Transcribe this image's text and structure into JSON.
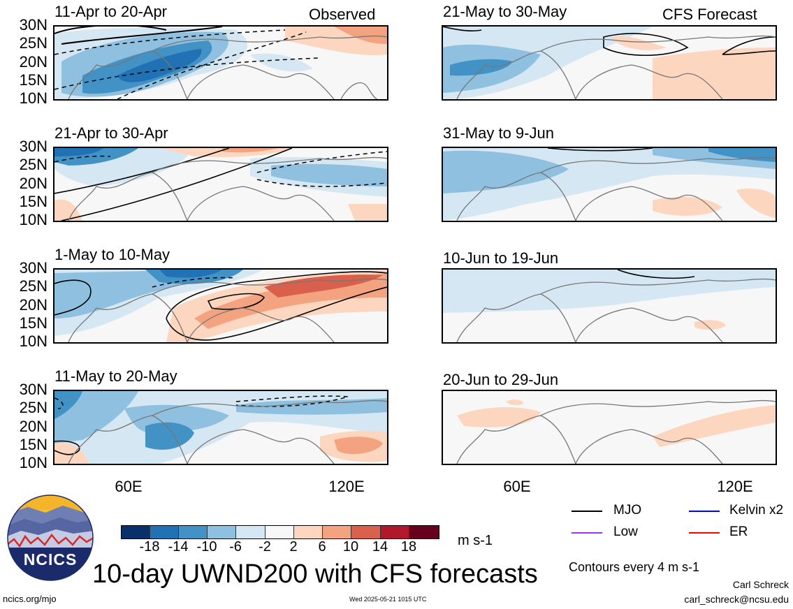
{
  "header": {
    "observed_label": "Observed",
    "forecast_label": "CFS Forecast"
  },
  "panels": {
    "left": [
      {
        "title": "11-Apr to 20-Apr"
      },
      {
        "title": "21-Apr to 30-Apr"
      },
      {
        "title": "1-May to 10-May"
      },
      {
        "title": "11-May to 20-May"
      }
    ],
    "right": [
      {
        "title": "21-May to 30-May"
      },
      {
        "title": "31-May to 9-Jun"
      },
      {
        "title": "10-Jun to 19-Jun"
      },
      {
        "title": "20-Jun to 29-Jun"
      }
    ]
  },
  "axes": {
    "lat_labels": [
      "30N",
      "25N",
      "20N",
      "15N",
      "10N"
    ],
    "lon_labels": [
      "60E",
      "120E"
    ]
  },
  "colorbar": {
    "colors": [
      "#08306b",
      "#2171b5",
      "#4292c6",
      "#8fc0e0",
      "#d6e7f4",
      "#f7f7f7",
      "#fdd6c0",
      "#f3a37f",
      "#d9604d",
      "#b2182b",
      "#67001f"
    ],
    "ticks": [
      "-18",
      "-14",
      "-10",
      "-6",
      "-2",
      "2",
      "6",
      "10",
      "14",
      "18"
    ],
    "units": "m s-1"
  },
  "legend": {
    "items": [
      {
        "label": "MJO",
        "color": "#000000"
      },
      {
        "label": "Kelvin x2",
        "color": "#0000ff"
      },
      {
        "label": "Low",
        "color": "#9933ff"
      },
      {
        "label": "ER",
        "color": "#ff0000"
      }
    ],
    "contour_note": "Contours every 4 m s-1"
  },
  "footer": {
    "main_title": "10-day UWND200 with CFS forecasts",
    "logo_text": "NCICS",
    "url": "ncics.org/mjo",
    "timestamp": "Wed 2025-05-21 1015 UTC",
    "author": "Carl Schreck",
    "email": "carl_schreck@ncsu.edu"
  }
}
